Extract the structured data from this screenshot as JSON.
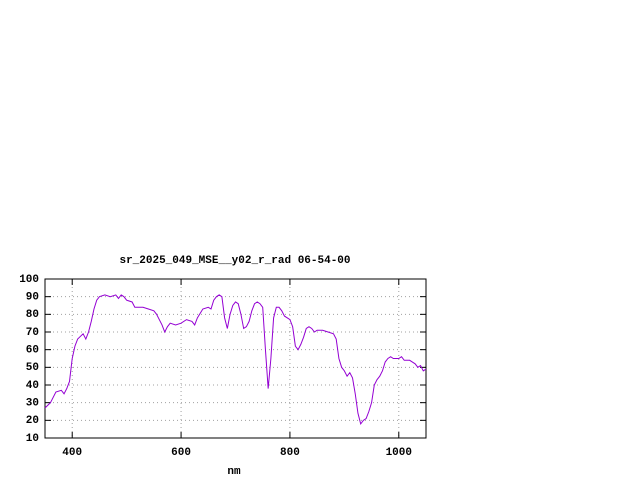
{
  "chart_data": {
    "type": "line",
    "title": "sr_2025_049_MSE__y02_r_rad 06-54-00",
    "x_label": "nm",
    "x": [
      350,
      360,
      370,
      380,
      385,
      390,
      395,
      400,
      405,
      410,
      420,
      425,
      430,
      435,
      440,
      445,
      450,
      460,
      470,
      480,
      485,
      490,
      495,
      500,
      510,
      515,
      530,
      540,
      550,
      555,
      565,
      570,
      575,
      580,
      590,
      600,
      610,
      620,
      625,
      630,
      640,
      650,
      655,
      660,
      665,
      670,
      675,
      680,
      685,
      690,
      695,
      700,
      705,
      710,
      715,
      720,
      725,
      730,
      735,
      740,
      745,
      750,
      755,
      760,
      765,
      770,
      775,
      780,
      785,
      790,
      800,
      805,
      810,
      815,
      820,
      825,
      830,
      835,
      840,
      845,
      850,
      860,
      870,
      880,
      885,
      890,
      895,
      900,
      905,
      910,
      915,
      920,
      925,
      930,
      935,
      940,
      945,
      950,
      955,
      960,
      965,
      970,
      975,
      980,
      985,
      990,
      1000,
      1005,
      1010,
      1020,
      1025,
      1030,
      1035,
      1040,
      1045,
      1050
    ],
    "series": [
      {
        "name": "sr_2025_049_MSE__y02_r_rad",
        "color": "#9400d3",
        "values": [
          27,
          30,
          36,
          37,
          35,
          38,
          42,
          55,
          62,
          66,
          69,
          66,
          70,
          76,
          83,
          88,
          90,
          91,
          90,
          91,
          89,
          91,
          90,
          88,
          87,
          84,
          84,
          83,
          82,
          80,
          74,
          70,
          73,
          75,
          74,
          75,
          77,
          76,
          74,
          78,
          83,
          84,
          83,
          88,
          90,
          91,
          90,
          78,
          72,
          80,
          85,
          87,
          86,
          80,
          72,
          73,
          76,
          82,
          86,
          87,
          86,
          84,
          60,
          38,
          55,
          78,
          84,
          84,
          82,
          79,
          77,
          73,
          62,
          60,
          63,
          67,
          72,
          73,
          72,
          70,
          71,
          71,
          70,
          69,
          66,
          55,
          50,
          48,
          45,
          47,
          44,
          35,
          24,
          18,
          20,
          21,
          25,
          30,
          40,
          43,
          45,
          48,
          53,
          55,
          56,
          55,
          55,
          56,
          54,
          54,
          53,
          52,
          50,
          51,
          48,
          49
        ]
      }
    ],
    "xlim": [
      350,
      1050
    ],
    "ylim": [
      10,
      100
    ],
    "xticks": [
      400,
      600,
      800,
      1000
    ],
    "yticks": [
      10,
      20,
      30,
      40,
      50,
      60,
      70,
      80,
      90,
      100
    ],
    "grid": true
  }
}
